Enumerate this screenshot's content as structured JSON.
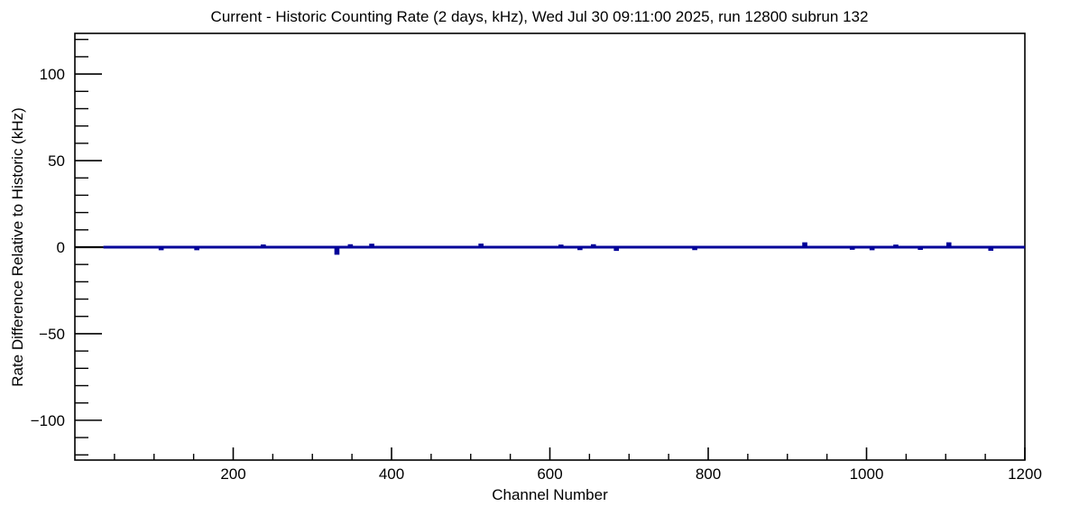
{
  "window": {
    "background_color": "#ffffff"
  },
  "chart_data": {
    "type": "line",
    "title": "Current - Historic Counting Rate (2 days, kHz), Wed Jul 30 09:11:00 2025, run 12800 subrun 132",
    "xlabel": "Channel Number",
    "ylabel": "Rate Difference Relative to Historic (kHz)",
    "xlim": [
      0,
      1200
    ],
    "ylim": [
      -123,
      123.5
    ],
    "x_major_ticks": [
      200,
      400,
      600,
      800,
      1000,
      1200
    ],
    "x_minor_step": 50,
    "y_major_ticks": [
      -100,
      -50,
      0,
      50,
      100
    ],
    "y_minor_step": 10,
    "grid": false,
    "legend": null,
    "frame_color": "#000000",
    "series": [
      {
        "name": "zero-baseline-segment",
        "color": "#000000",
        "baseline": 0,
        "x_start": 0,
        "x_end": 36,
        "spikes": []
      },
      {
        "name": "rate-difference",
        "color": "#000099",
        "baseline": 0,
        "x_start": 36,
        "x_end": 1200,
        "spikes": [
          [
            109,
            -1.0
          ],
          [
            154,
            -1.0
          ],
          [
            238,
            0.8
          ],
          [
            331,
            -3.6
          ],
          [
            348,
            0.9
          ],
          [
            375,
            1.2
          ],
          [
            513,
            1.3
          ],
          [
            614,
            0.7
          ],
          [
            638,
            -0.9
          ],
          [
            655,
            0.9
          ],
          [
            684,
            -1.4
          ],
          [
            783,
            -0.9
          ],
          [
            922,
            2.0
          ],
          [
            982,
            -0.7
          ],
          [
            1007,
            -1.0
          ],
          [
            1037,
            0.7
          ],
          [
            1068,
            -0.8
          ],
          [
            1104,
            2.0
          ],
          [
            1157,
            -1.3
          ]
        ]
      }
    ]
  }
}
